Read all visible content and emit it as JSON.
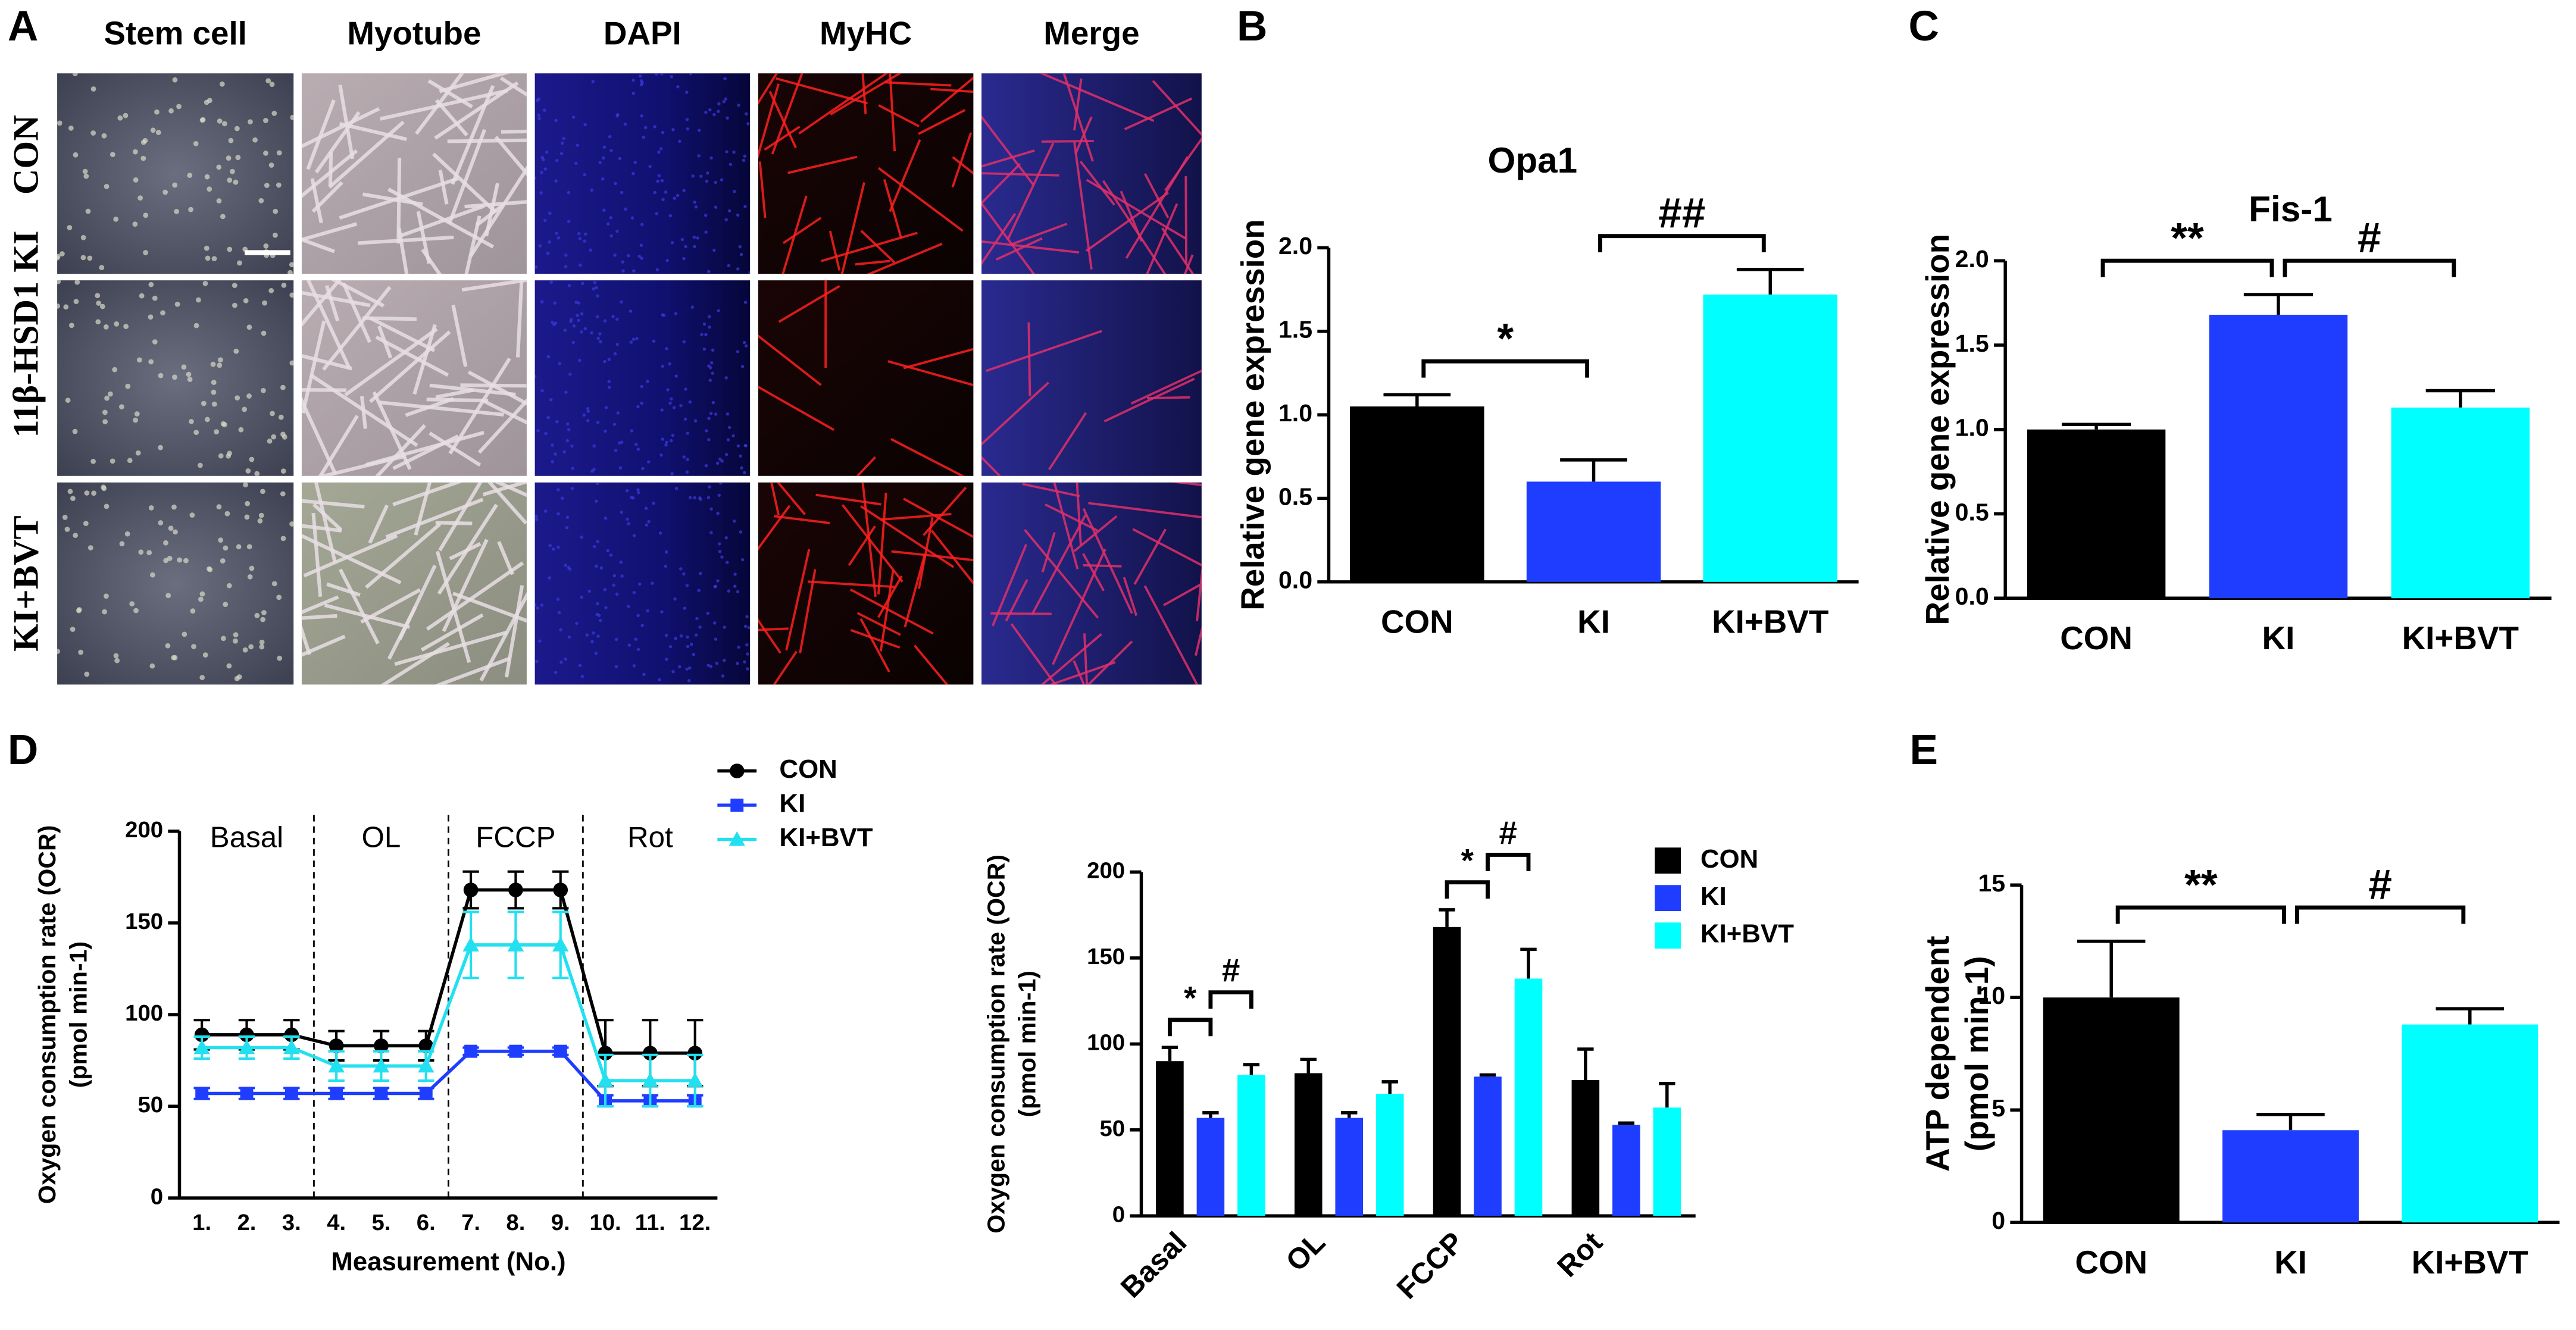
{
  "panel_labels": [
    "A",
    "B",
    "C",
    "D",
    "E"
  ],
  "image_grid": {
    "columns": [
      "Stem cell",
      "Myotube",
      "DAPI",
      "MyHC",
      "Merge"
    ],
    "rows": [
      "CON",
      "11β-HSD1 KI",
      "KI+BVT"
    ]
  },
  "chart_data": [
    {
      "type": "bar",
      "title": "Opa1",
      "ylabel": "Relative gene expression",
      "categories": [
        "CON",
        "KI",
        "KI+BVT"
      ],
      "values": [
        1.05,
        0.6,
        1.72
      ],
      "error": [
        0.07,
        0.13,
        0.15
      ],
      "colors": [
        "#000000",
        "#1f3dff",
        "#00ffff"
      ],
      "ylim": [
        0,
        2
      ],
      "yticks": [
        {
          "value": 0,
          "label": "0.0"
        },
        0.5,
        {
          "value": 1,
          "label": "1.0"
        },
        1.5,
        {
          "value": 2,
          "label": "2.0"
        }
      ],
      "annotations": [
        "*",
        "##"
      ]
    },
    {
      "type": "bar",
      "title": "Fis-1",
      "ylabel": "Relative gene expression",
      "categories": [
        "CON",
        "KI",
        "KI+BVT"
      ],
      "values": [
        1.0,
        1.68,
        1.13
      ],
      "error": [
        0.03,
        0.12,
        0.1
      ],
      "colors": [
        "#000000",
        "#1f3dff",
        "#00ffff"
      ],
      "ylim": [
        0,
        2
      ],
      "yticks": [
        {
          "value": 0,
          "label": "0.0"
        },
        0.5,
        {
          "value": 1,
          "label": "1.0"
        },
        1.5,
        {
          "value": 2,
          "label": "2.0"
        }
      ],
      "annotations": [
        "**",
        "#"
      ]
    },
    {
      "type": "line",
      "ylabel": [
        "Oxygen consumption rate (OCR)",
        "(pmol min-1)"
      ],
      "xlabel": "Measurement (No.)",
      "categories": [
        "1.",
        "2.",
        "3.",
        "4.",
        "5.",
        "6.",
        "7.",
        "8.",
        "9.",
        "10.",
        "11.",
        "12."
      ],
      "phases": [
        "Basal",
        "OL",
        "FCCP",
        "Rot"
      ],
      "series": [
        {
          "name": "CON",
          "color": "#000000",
          "marker": "circle",
          "values": [
            89,
            89,
            89,
            83,
            83,
            83,
            168,
            168,
            168,
            79,
            79,
            79
          ],
          "error": [
            8,
            8,
            8,
            8,
            8,
            8,
            10,
            10,
            10,
            18,
            18,
            18
          ]
        },
        {
          "name": "KI",
          "color": "#1f3dff",
          "marker": "square",
          "values": [
            57,
            57,
            57,
            57,
            57,
            57,
            80,
            80,
            80,
            53,
            53,
            53
          ],
          "error": [
            3,
            3,
            3,
            3,
            3,
            3,
            2,
            2,
            2,
            3,
            3,
            3
          ]
        },
        {
          "name": "KI+BVT",
          "color": "#22e0f0",
          "marker": "triangle",
          "values": [
            82,
            82,
            82,
            72,
            72,
            72,
            138,
            138,
            138,
            64,
            64,
            64
          ],
          "error": [
            6,
            6,
            6,
            8,
            8,
            8,
            18,
            18,
            18,
            14,
            14,
            14
          ]
        }
      ],
      "ylim": [
        0,
        200
      ],
      "yticks": [
        0,
        50,
        100,
        150,
        200
      ]
    },
    {
      "type": "grouped_bar",
      "ylabel": [
        "Oxygen consumption rate (OCR)",
        "(pmol min-1)"
      ],
      "categories": [
        "Basal",
        "OL",
        "FCCP",
        "Rot"
      ],
      "series": [
        {
          "name": "CON",
          "color": "#000000",
          "values": [
            90,
            83,
            168,
            79
          ],
          "error": [
            8,
            8,
            10,
            18
          ]
        },
        {
          "name": "KI",
          "color": "#1f3dff",
          "values": [
            57,
            57,
            81,
            53
          ],
          "error": [
            3,
            3,
            1,
            1
          ]
        },
        {
          "name": "KI+BVT",
          "color": "#00ffff",
          "values": [
            82,
            71,
            138,
            63
          ],
          "error": [
            6,
            7,
            17,
            14
          ]
        }
      ],
      "ylim": [
        0,
        200
      ],
      "yticks": [
        0,
        50,
        100,
        150,
        200
      ],
      "annotations": [
        "*",
        "#",
        "*",
        "#"
      ]
    },
    {
      "type": "bar",
      "ylabel": [
        "ATP dependent",
        "(pmol min-1)"
      ],
      "categories": [
        "CON",
        "KI",
        "KI+BVT"
      ],
      "values": [
        10.0,
        4.1,
        8.8
      ],
      "error": [
        2.5,
        0.7,
        0.7
      ],
      "colors": [
        "#000000",
        "#1f3dff",
        "#00ffff"
      ],
      "ylim": [
        0,
        15
      ],
      "yticks": [
        0,
        5,
        10,
        15
      ],
      "annotations": [
        "**",
        "#"
      ]
    }
  ]
}
